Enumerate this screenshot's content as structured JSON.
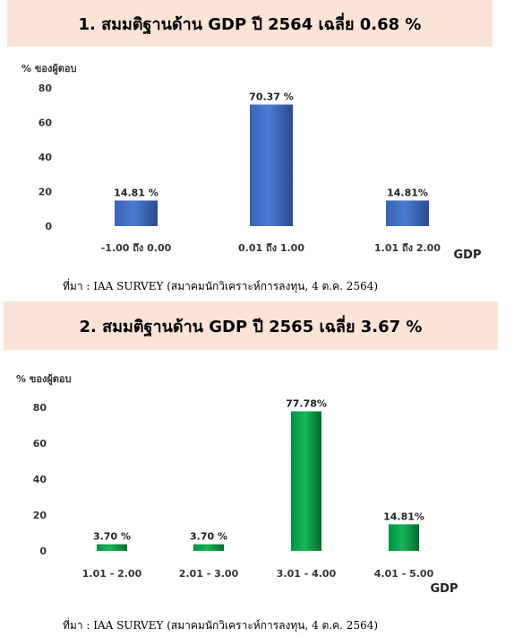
{
  "sections": [
    {
      "banner_title": "1. สมมติฐานด้าน GDP ปี 2564 เฉลี่ย 0.68 %",
      "source": "ที่มา : IAA SURVEY (สมาคมนักวิเคราะห์การลงทุน, 4 ต.ค. 2564)"
    },
    {
      "banner_title": "2. สมมติฐานด้าน GDP ปี 2565 เฉลี่ย 3.67 %",
      "source": "ที่มา : IAA SURVEY (สมาคมนักวิเคราะห์การลงทุน, 4 ต.ค. 2564)"
    }
  ],
  "chart_data": [
    {
      "type": "bar",
      "title": "",
      "ylabel": "% ของผู้ตอบ",
      "xlabel": "GDP",
      "ylim": [
        0,
        80
      ],
      "yticks": [
        0,
        20,
        40,
        60,
        80
      ],
      "grid": false,
      "categories": [
        "-1.00 ถึง 0.00",
        "0.01 ถึง 1.00",
        "1.01 ถึง 2.00"
      ],
      "values": [
        14.81,
        70.37,
        14.81
      ],
      "data_labels": [
        "14.81 %",
        "70.37 %",
        "14.81%"
      ],
      "bar_color": "#4472c4"
    },
    {
      "type": "bar",
      "title": "",
      "ylabel": "% ของผู้ตอบ",
      "xlabel": "GDP",
      "ylim": [
        0,
        80
      ],
      "yticks": [
        0,
        20,
        40,
        60,
        80
      ],
      "grid": false,
      "categories": [
        "1.01 - 2.00",
        "2.01 - 3.00",
        "3.01 - 4.00",
        "4.01 - 5.00"
      ],
      "values": [
        3.7,
        3.7,
        77.78,
        14.81
      ],
      "data_labels": [
        "3.70 %",
        "3.70 %",
        "77.78%",
        "14.81%"
      ],
      "bar_color": "#00a651"
    }
  ]
}
